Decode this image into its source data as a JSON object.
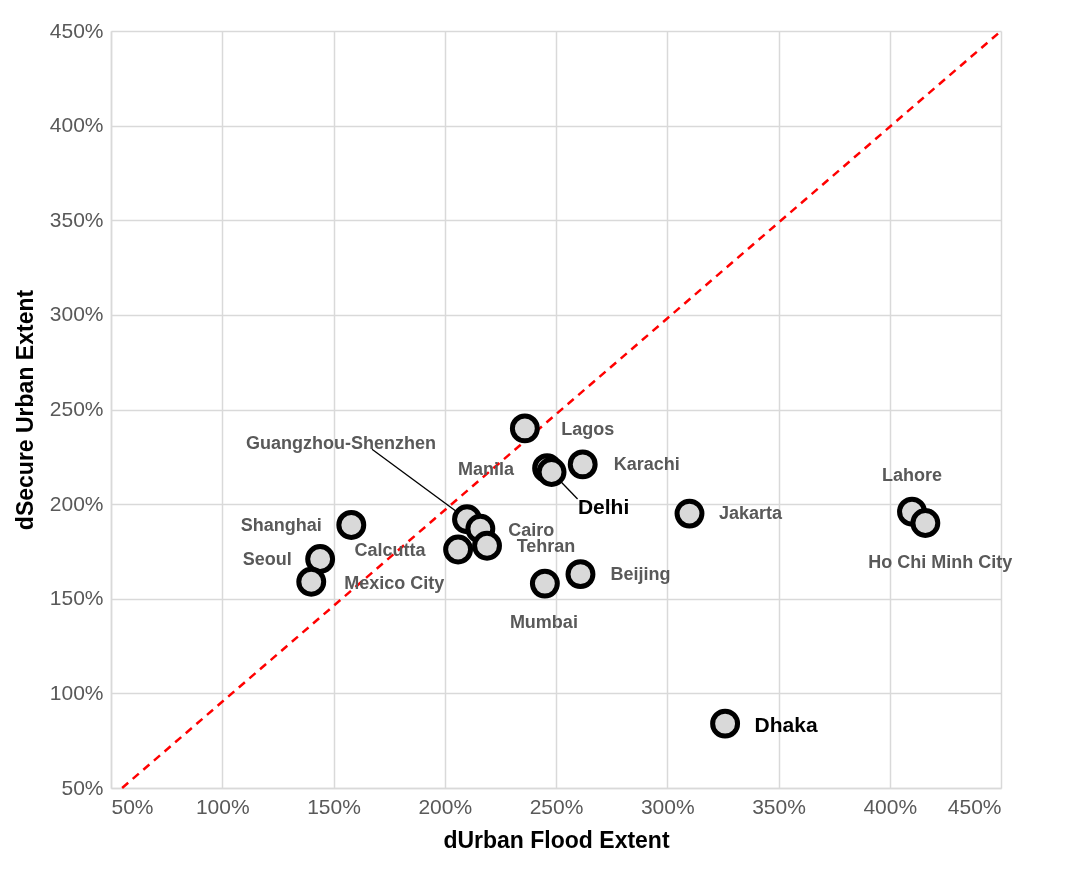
{
  "chart_data": {
    "type": "scatter",
    "xlabel": "dUrban Flood Extent",
    "ylabel": "dSecure Urban Extent",
    "xlim": [
      50,
      450
    ],
    "ylim": [
      50,
      450
    ],
    "xticks": [
      {
        "value": 50,
        "label": "50%"
      },
      {
        "value": 100,
        "label": "100%"
      },
      {
        "value": 150,
        "label": "150%"
      },
      {
        "value": 200,
        "label": "200%"
      },
      {
        "value": 250,
        "label": "250%"
      },
      {
        "value": 300,
        "label": "300%"
      },
      {
        "value": 350,
        "label": "350%"
      },
      {
        "value": 400,
        "label": "400%"
      },
      {
        "value": 450,
        "label": "450%"
      }
    ],
    "yticks": [
      {
        "value": 50,
        "label": "50%"
      },
      {
        "value": 100,
        "label": "100%"
      },
      {
        "value": 150,
        "label": "150%"
      },
      {
        "value": 200,
        "label": "200%"
      },
      {
        "value": 250,
        "label": "250%"
      },
      {
        "value": 300,
        "label": "300%"
      },
      {
        "value": 350,
        "label": "350%"
      },
      {
        "value": 400,
        "label": "400%"
      },
      {
        "value": 450,
        "label": "450%"
      }
    ],
    "grid": true,
    "series": [
      {
        "type": "line",
        "color": "#ff0000",
        "line_style": "dashed",
        "marker": "none",
        "x": [
          55,
          450
        ],
        "values": [
          50,
          450
        ]
      },
      {
        "color": "#d9d9d9",
        "marker": "circle",
        "x": [
          236,
          210,
          246,
          248,
          262,
          410,
          158,
          216,
          310,
          219,
          206,
          144,
          140,
          261,
          416,
          245,
          326
        ],
        "values": [
          240,
          192,
          219,
          217,
          221,
          196,
          189,
          187,
          195,
          178,
          176,
          171,
          159,
          163,
          190,
          158,
          84
        ]
      }
    ],
    "annotations": [
      {
        "text": "Lagos",
        "x": 236,
        "y": 240
      },
      {
        "text": "Guangzhou-Shenzhen",
        "x": 210,
        "y": 192
      },
      {
        "text": "Manila",
        "x": 246,
        "y": 219
      },
      {
        "text": "Delhi",
        "x": 248,
        "y": 217
      },
      {
        "text": "Karachi",
        "x": 262,
        "y": 221
      },
      {
        "text": "Lahore",
        "x": 410,
        "y": 196
      },
      {
        "text": "Shanghai",
        "x": 158,
        "y": 189
      },
      {
        "text": "Cairo",
        "x": 216,
        "y": 187
      },
      {
        "text": "Jakarta",
        "x": 310,
        "y": 195
      },
      {
        "text": "Tehran",
        "x": 219,
        "y": 178
      },
      {
        "text": "Calcutta",
        "x": 206,
        "y": 176
      },
      {
        "text": "Seoul",
        "x": 144,
        "y": 171
      },
      {
        "text": "Mexico City",
        "x": 140,
        "y": 159
      },
      {
        "text": "Beijing",
        "x": 261,
        "y": 163
      },
      {
        "text": "Ho Chi Minh City",
        "x": 416,
        "y": 190
      },
      {
        "text": "Mumbai",
        "x": 245,
        "y": 158
      },
      {
        "text": "Dhaka",
        "x": 326,
        "y": 84
      }
    ]
  }
}
